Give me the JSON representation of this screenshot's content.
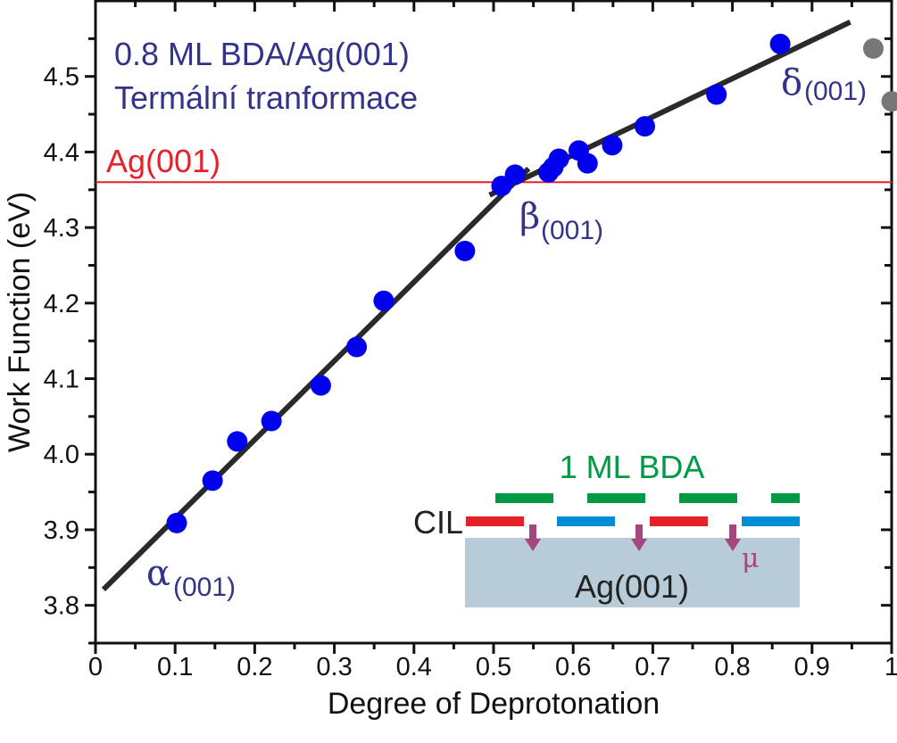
{
  "chart_data": {
    "type": "scatter",
    "title": "",
    "xlabel": "Degree of Deprotonation",
    "ylabel": "Work Function (eV)",
    "xlim": [
      0,
      1
    ],
    "ylim": [
      3.75,
      4.6
    ],
    "xticks": [
      0,
      0.1,
      0.2,
      0.3,
      0.4,
      0.5,
      0.6,
      0.7,
      0.8,
      0.9,
      1
    ],
    "xtick_labels": [
      "0",
      "0.1",
      "0.2",
      "0.3",
      "0.4",
      "0.5",
      "0.6",
      "0.7",
      "0.8",
      "0.9",
      "1"
    ],
    "yticks": [
      3.8,
      3.9,
      4.0,
      4.1,
      4.2,
      4.3,
      4.4,
      4.5
    ],
    "ytick_labels": [
      "3.8",
      "3.9",
      "4.0",
      "4.1",
      "4.2",
      "4.3",
      "4.4",
      "4.5"
    ],
    "grid": false,
    "series": [
      {
        "name": "measured",
        "color": "#0000ee",
        "x": [
          0.102,
          0.147,
          0.178,
          0.221,
          0.283,
          0.328,
          0.362,
          0.464,
          0.51,
          0.527,
          0.569,
          0.575,
          0.582,
          0.607,
          0.618,
          0.649,
          0.69,
          0.78,
          0.86
        ],
        "y": [
          3.909,
          3.965,
          4.017,
          4.044,
          4.091,
          4.142,
          4.203,
          4.269,
          4.355,
          4.37,
          4.373,
          4.38,
          4.391,
          4.402,
          4.385,
          4.409,
          4.434,
          4.476,
          4.543
        ]
      },
      {
        "name": "excluded",
        "color": "#777777",
        "x": [
          0.977,
          1.0
        ],
        "y": [
          4.537,
          4.467
        ]
      }
    ],
    "fits": [
      {
        "name": "fit-alpha-beta",
        "color": "#2a2a2a",
        "x": [
          0.01,
          0.544
        ],
        "y": [
          3.821,
          4.378
        ]
      },
      {
        "name": "fit-beta-delta",
        "color": "#2a2a2a",
        "x": [
          0.495,
          0.948
        ],
        "y": [
          4.343,
          4.572
        ]
      }
    ],
    "reference_line": {
      "label": "Ag(001)",
      "y": 4.36,
      "color": "#e8202a"
    },
    "annotations": {
      "title_line1": "0.8 ML BDA/Ag(001)",
      "title_line2": "Termální tranformace",
      "alpha": "α",
      "beta": "β",
      "delta": "δ",
      "phase_subscript": "(001)"
    },
    "inset": {
      "bda_label": "1 ML BDA",
      "cil_label": "CIL",
      "substrate_label": "Ag(001)",
      "mu_label": "μ",
      "colors": {
        "bda": "#009944",
        "cil_red": "#e52028",
        "cil_blue": "#008fd5",
        "arrow": "#a6467f",
        "substrate": "#b8cbd8"
      }
    }
  }
}
